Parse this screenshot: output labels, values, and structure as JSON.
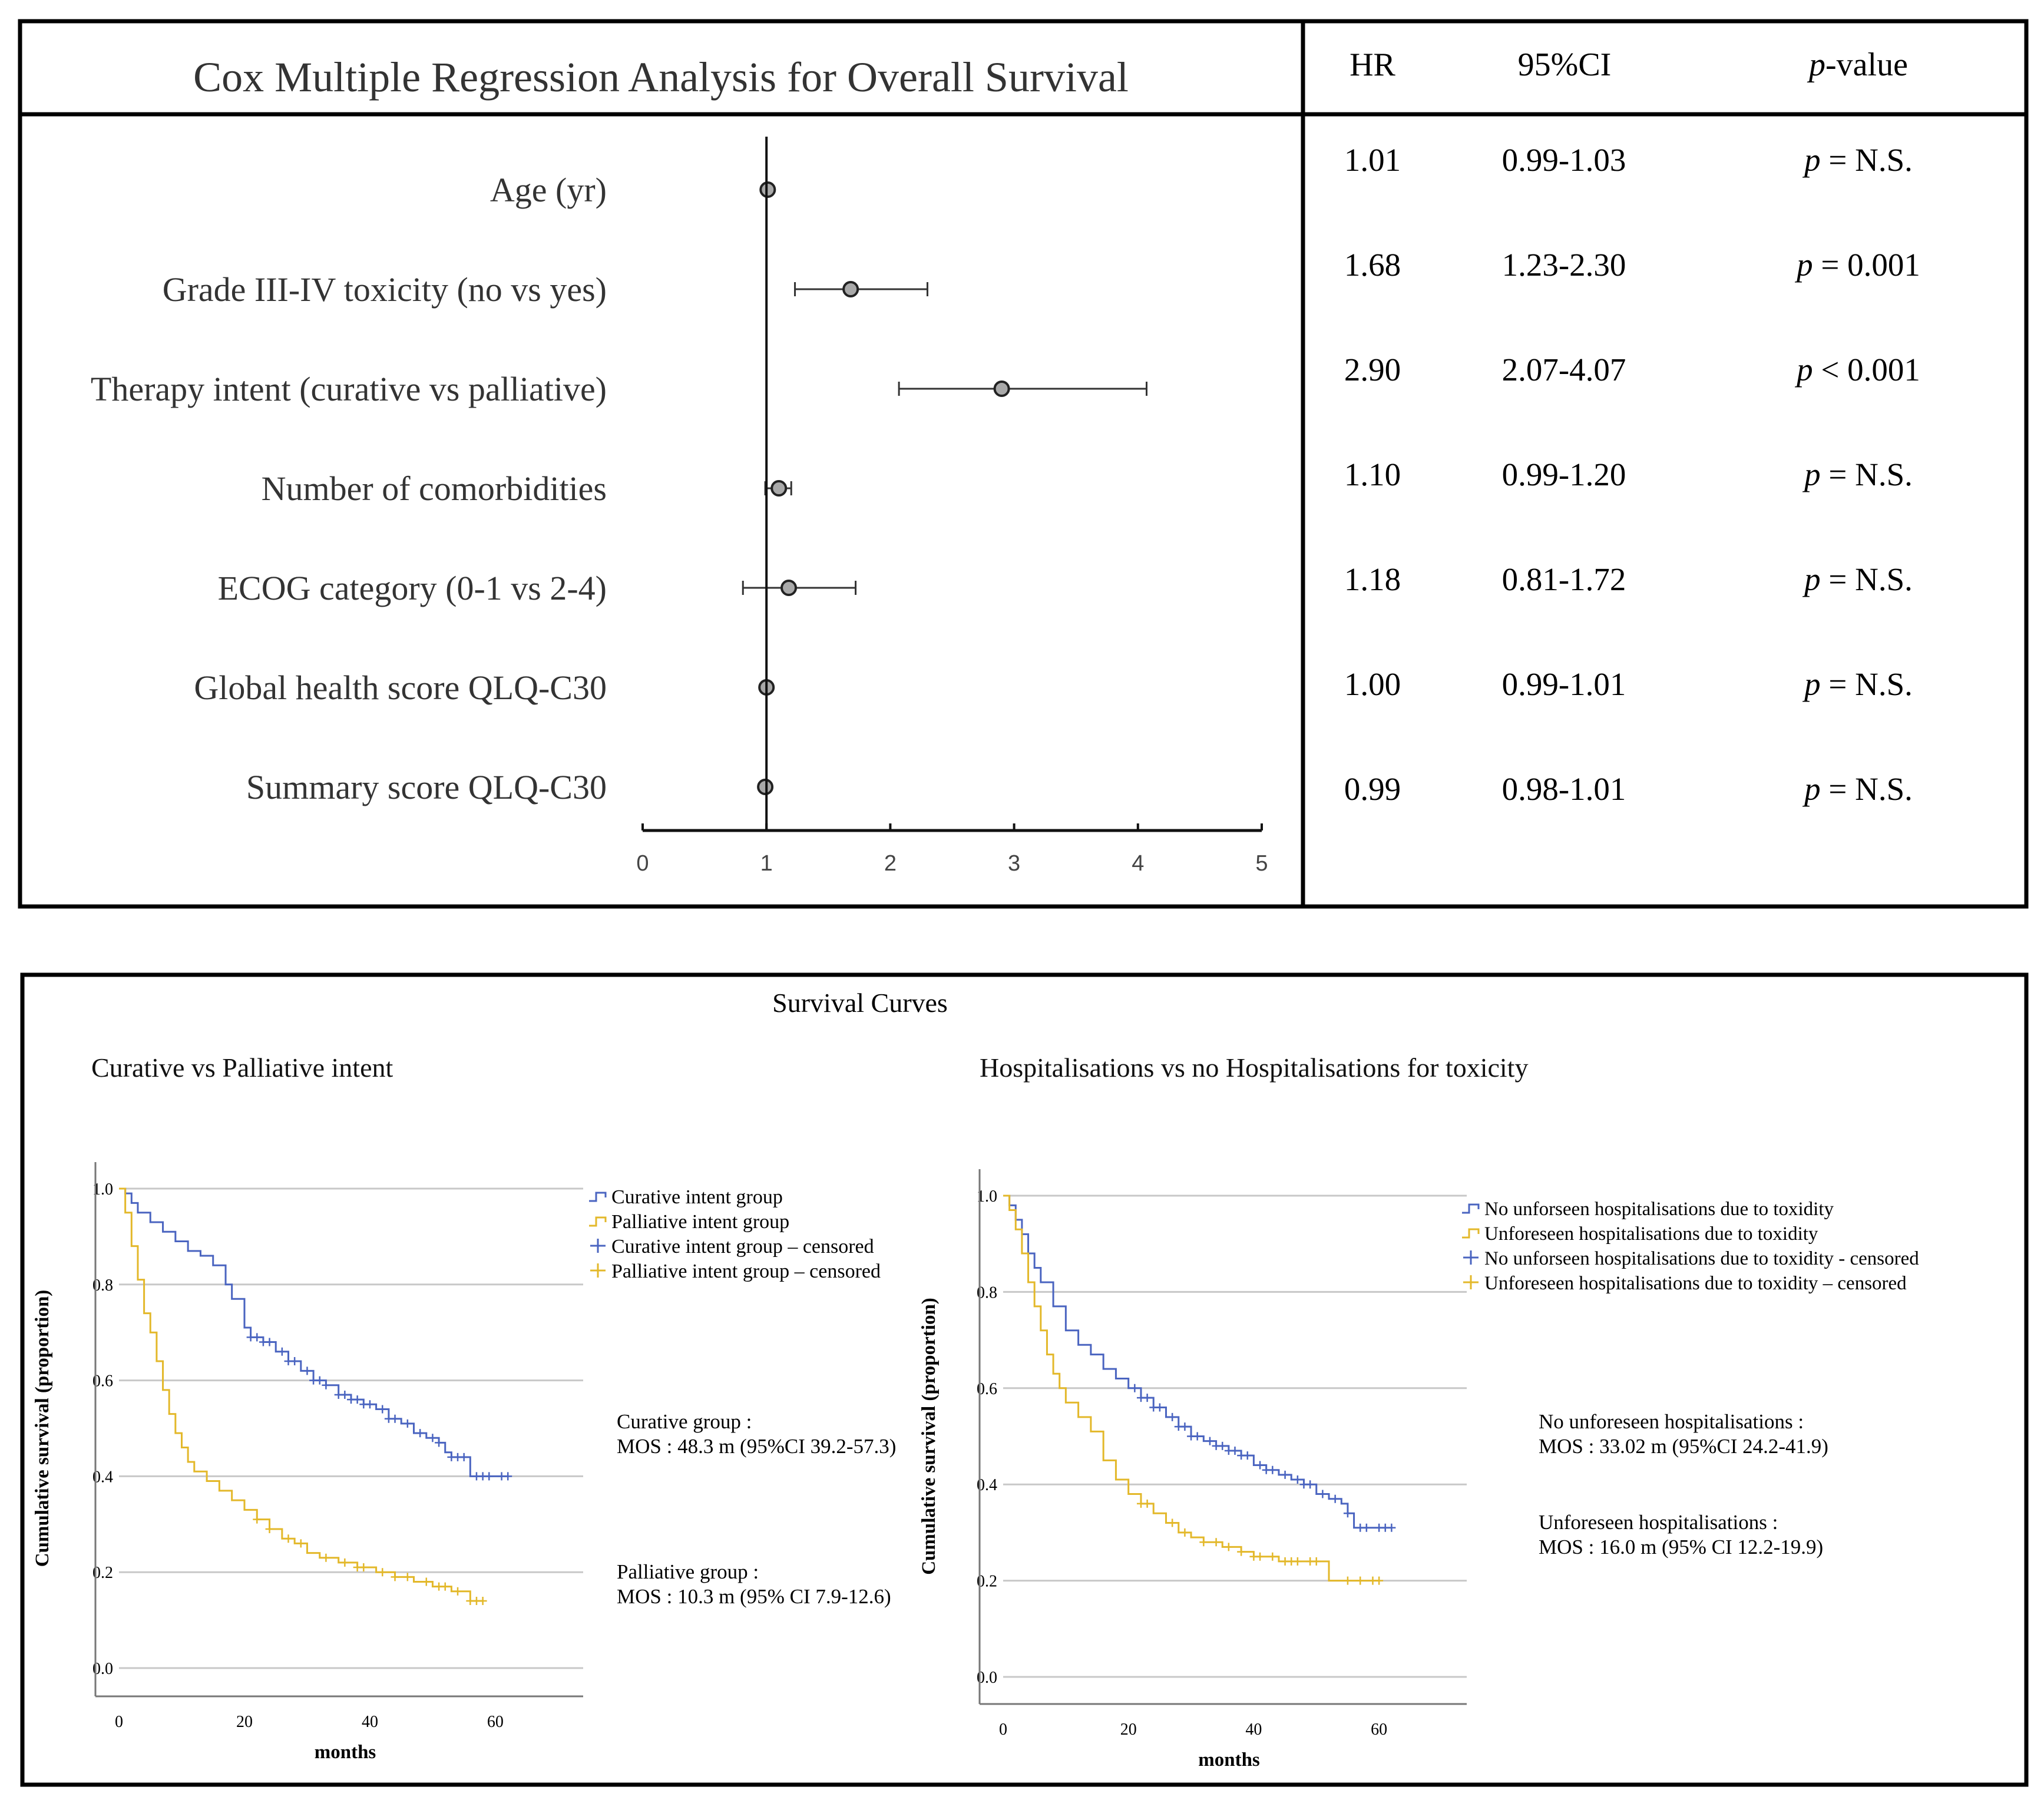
{
  "forest": {
    "title": "Cox Multiple Regression Analysis for Overall Survival",
    "headers": {
      "hr": "HR",
      "ci": "95%CI",
      "p_italic": "p",
      "p_rest": "-value"
    },
    "rows": [
      {
        "label": "Age (yr)",
        "hr": "1.01",
        "ci": "0.99-1.03",
        "p_italic": "p",
        "p_rest": " = N.S."
      },
      {
        "label": "Grade III-IV toxicity  (no vs yes)",
        "hr": "1.68",
        "ci": "1.23-2.30",
        "p_italic": "p",
        "p_rest": " = 0.001"
      },
      {
        "label": "Therapy intent (curative vs palliative)",
        "hr": "2.90",
        "ci": "2.07-4.07",
        "p_italic": "p",
        "p_rest": " < 0.001"
      },
      {
        "label": "Number of comorbidities",
        "hr": "1.10",
        "ci": "0.99-1.20",
        "p_italic": "p",
        "p_rest": " = N.S."
      },
      {
        "label": "ECOG category (0-1 vs 2-4)",
        "hr": "1.18",
        "ci": "0.81-1.72",
        "p_italic": "p",
        "p_rest": " = N.S."
      },
      {
        "label": "Global health score QLQ-C30",
        "hr": "1.00",
        "ci": "0.99-1.01",
        "p_italic": "p",
        "p_rest": " = N.S."
      },
      {
        "label": "Summary score QLQ-C30",
        "hr": "0.99",
        "ci": "0.98-1.01",
        "p_italic": "p",
        "p_rest": " = N.S."
      }
    ],
    "axis_ticks": [
      "0",
      "1",
      "2",
      "3",
      "4",
      "5"
    ]
  },
  "survival": {
    "title": "Survival Curves",
    "mos_text": {
      "curative_head": "Curative group :",
      "curative_mos": "MOS : 48.3 m (95%CI 39.2-57.3)",
      "palliative_head": "Palliative group :",
      "palliative_mos": "MOS : 10.3 m (95% CI 7.9-12.6)",
      "nohosp_head": "No unforeseen hospitalisations :",
      "nohosp_mos": "MOS : 33.02 m (95%CI 24.2-41.9)",
      "hosp_head": "Unforeseen hospitalisations :",
      "hosp_mos": "MOS : 16.0 m (95% CI 12.2-19.9)"
    }
  },
  "colors": {
    "blue": "#4a64c0",
    "yellow": "#e3b82a",
    "grid": "#c8c8c8",
    "dot": "#a9a9a9"
  },
  "chart_data": [
    {
      "type": "scatter",
      "title": "Cox Multiple Regression Analysis for Overall Survival",
      "xlabel": "",
      "ylabel": "",
      "xlim": [
        0,
        5
      ],
      "reference_line": 1,
      "categories": [
        "Age (yr)",
        "Grade III-IV toxicity  (no vs yes)",
        "Therapy intent (curative vs palliative)",
        "Number of comorbidities",
        "ECOG category (0-1 vs 2-4)",
        "Global health score QLQ-C30",
        "Summary score QLQ-C30"
      ],
      "hr": [
        1.01,
        1.68,
        2.9,
        1.1,
        1.18,
        1.0,
        0.99
      ],
      "ci_low": [
        0.99,
        1.23,
        2.07,
        0.99,
        0.81,
        0.99,
        0.98
      ],
      "ci_high": [
        1.03,
        2.3,
        4.07,
        1.2,
        1.72,
        1.01,
        1.01
      ]
    },
    {
      "type": "line",
      "step": true,
      "title": "Curative  vs Palliative  intent",
      "xlabel": "months",
      "ylabel": "Cumulative survival (proportion)",
      "xlim": [
        0,
        74
      ],
      "ylim": [
        0,
        1
      ],
      "xticks": [
        0,
        20,
        40,
        60
      ],
      "yticks": [
        0.0,
        0.2,
        0.4,
        0.6,
        0.8,
        1.0
      ],
      "yticklabels": [
        "0.0",
        "0.2",
        "0.4",
        "0.6",
        "0.8",
        "1.0"
      ],
      "legend": [
        "Curative intent group",
        "Palliative intent group",
        "Curative intent group – censored",
        "Palliative intent group – censored"
      ],
      "legend_position": "right",
      "series": [
        {
          "name": "Curative intent group",
          "x": [
            0,
            1,
            2,
            3,
            5,
            7,
            9,
            11,
            13,
            15,
            17,
            18,
            20,
            21,
            23,
            25,
            27,
            29,
            31,
            33,
            35,
            37,
            39,
            41,
            43,
            45,
            47,
            49,
            51,
            52,
            53,
            55,
            56,
            57,
            60,
            62
          ],
          "y": [
            1.0,
            0.99,
            0.97,
            0.95,
            0.93,
            0.91,
            0.89,
            0.87,
            0.86,
            0.84,
            0.8,
            0.77,
            0.71,
            0.69,
            0.68,
            0.66,
            0.64,
            0.62,
            0.6,
            0.59,
            0.57,
            0.56,
            0.55,
            0.54,
            0.52,
            0.51,
            0.49,
            0.48,
            0.47,
            0.45,
            0.44,
            0.44,
            0.4,
            0.4,
            0.4,
            0.4
          ],
          "censored_x": [
            21,
            22,
            23,
            24,
            26,
            27,
            28,
            30,
            31,
            32,
            33,
            35,
            36,
            37,
            38,
            39,
            40,
            42,
            43,
            44,
            46,
            48,
            50,
            51,
            53,
            54,
            55,
            57,
            58,
            59,
            61,
            62
          ]
        },
        {
          "name": "Palliative intent group",
          "x": [
            0,
            1,
            2,
            3,
            4,
            5,
            6,
            7,
            8,
            9,
            10,
            11,
            12,
            14,
            16,
            18,
            20,
            22,
            24,
            26,
            28,
            30,
            32,
            35,
            38,
            41,
            44,
            47,
            50,
            53,
            55,
            56,
            58
          ],
          "y": [
            1.0,
            0.95,
            0.88,
            0.81,
            0.74,
            0.7,
            0.64,
            0.58,
            0.53,
            0.49,
            0.46,
            0.43,
            0.41,
            0.39,
            0.37,
            0.35,
            0.33,
            0.31,
            0.29,
            0.27,
            0.26,
            0.24,
            0.23,
            0.22,
            0.21,
            0.2,
            0.19,
            0.18,
            0.17,
            0.16,
            0.16,
            0.14,
            0.14
          ],
          "censored_x": [
            22,
            24,
            27,
            29,
            33,
            36,
            38,
            39,
            42,
            44,
            46,
            49,
            51,
            52,
            54,
            56,
            57,
            58
          ]
        }
      ]
    },
    {
      "type": "line",
      "step": true,
      "title": "Hospitalisations  vs no Hospitalisations  for toxicity",
      "xlabel": "months",
      "ylabel": "Cumulative survival (proportion)",
      "xlim": [
        0,
        74
      ],
      "ylim": [
        0,
        1
      ],
      "xticks": [
        0,
        20,
        40,
        60
      ],
      "yticks": [
        0.0,
        0.2,
        0.4,
        0.6,
        0.8,
        1.0
      ],
      "yticklabels": [
        "0.0",
        "0.2",
        "0.4",
        "0.6",
        "0.8",
        "1.0"
      ],
      "legend": [
        "No unforseen hospitalisations due to toxidity",
        "Unforeseen hospitalisations due to toxidity",
        "No unforseen hospitalisations due to toxidity - censored",
        "Unforeseen hospitalisations due to toxidity – censored"
      ],
      "legend_position": "top-right",
      "series": [
        {
          "name": "No unforseen hospitalisations due to toxidity",
          "x": [
            0,
            1,
            2,
            3,
            4,
            5,
            6,
            8,
            10,
            12,
            14,
            16,
            18,
            20,
            22,
            24,
            26,
            28,
            30,
            32,
            34,
            36,
            38,
            40,
            42,
            44,
            46,
            48,
            50,
            52,
            54,
            55,
            56,
            58,
            60,
            62
          ],
          "y": [
            1.0,
            0.98,
            0.95,
            0.92,
            0.88,
            0.85,
            0.82,
            0.77,
            0.72,
            0.69,
            0.67,
            0.64,
            0.62,
            0.6,
            0.58,
            0.56,
            0.54,
            0.52,
            0.5,
            0.49,
            0.48,
            0.47,
            0.46,
            0.44,
            0.43,
            0.42,
            0.41,
            0.4,
            0.38,
            0.37,
            0.36,
            0.34,
            0.31,
            0.31,
            0.31,
            0.31
          ],
          "censored_x": [
            21,
            22,
            23,
            24,
            25,
            27,
            28,
            29,
            30,
            31,
            33,
            34,
            35,
            36,
            37,
            38,
            39,
            41,
            42,
            43,
            45,
            47,
            48,
            49,
            51,
            53,
            55,
            57,
            58,
            60,
            61,
            62
          ]
        },
        {
          "name": "Unforeseen hospitalisations due to toxidity",
          "x": [
            0,
            1,
            2,
            3,
            4,
            5,
            6,
            7,
            8,
            9,
            10,
            12,
            14,
            16,
            18,
            20,
            22,
            24,
            26,
            28,
            30,
            32,
            35,
            38,
            40,
            44,
            48,
            51,
            52,
            54,
            57,
            60
          ],
          "y": [
            1.0,
            0.97,
            0.93,
            0.88,
            0.82,
            0.77,
            0.72,
            0.67,
            0.63,
            0.6,
            0.57,
            0.54,
            0.51,
            0.45,
            0.41,
            0.38,
            0.36,
            0.34,
            0.32,
            0.3,
            0.29,
            0.28,
            0.27,
            0.26,
            0.25,
            0.24,
            0.24,
            0.24,
            0.2,
            0.2,
            0.2,
            0.2
          ],
          "censored_x": [
            22,
            23,
            27,
            29,
            32,
            34,
            36,
            38,
            40,
            41,
            43,
            45,
            46,
            47,
            49,
            50,
            55,
            57,
            59,
            60
          ]
        }
      ]
    }
  ]
}
